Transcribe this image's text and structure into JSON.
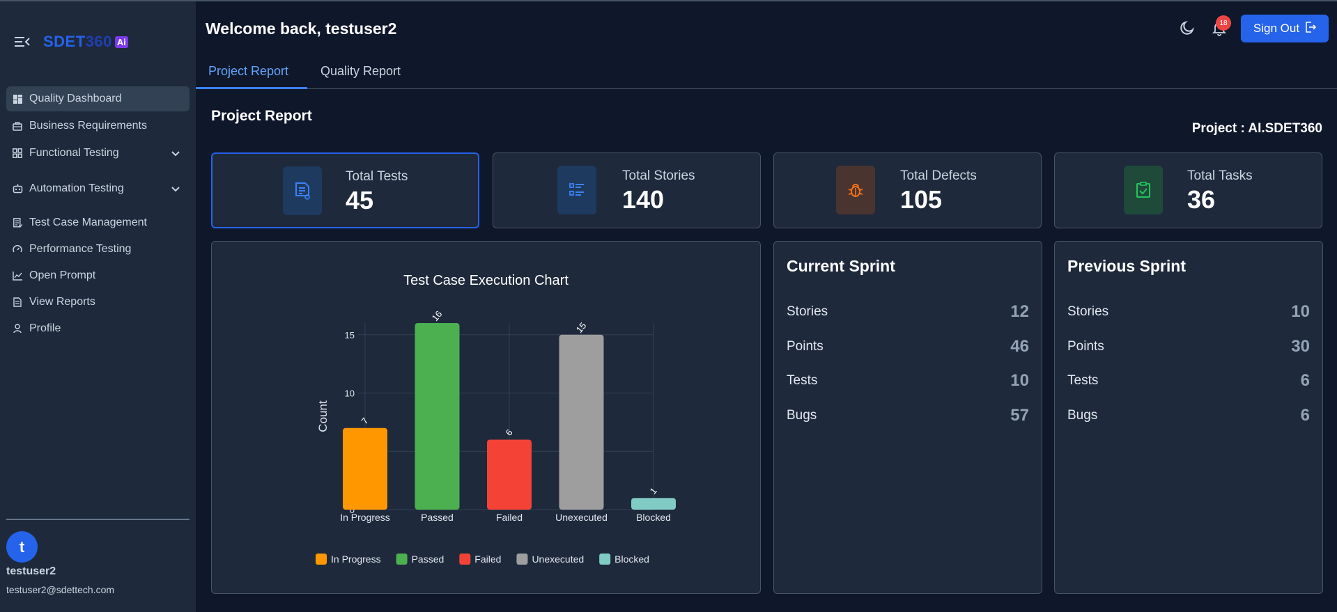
{
  "sidebar": {
    "logo_main": "SDET",
    "logo_num": "360",
    "logo_badge": "Ai",
    "items": [
      {
        "label": "Quality Dashboard",
        "icon": "dashboard-icon",
        "active": true
      },
      {
        "label": "Business Requirements",
        "icon": "briefcase-icon"
      },
      {
        "label": "Functional Testing",
        "icon": "grid-icon",
        "expandable": true
      },
      {
        "label": "Automation Testing",
        "icon": "robot-icon",
        "expandable": true
      },
      {
        "label": "Test Case Management",
        "icon": "checklist-icon"
      },
      {
        "label": "Performance Testing",
        "icon": "gauge-icon"
      },
      {
        "label": "Open Prompt",
        "icon": "chart-line-icon"
      },
      {
        "label": "View Reports",
        "icon": "document-icon"
      },
      {
        "label": "Profile",
        "icon": "user-icon"
      }
    ],
    "user": {
      "initial": "t",
      "name": "testuser2",
      "email": "testuser2@sdettech.com"
    }
  },
  "header": {
    "welcome": "Welcome back, testuser2",
    "notification_count": "18",
    "signout_label": "Sign Out"
  },
  "tabs": [
    {
      "label": "Project Report",
      "active": true
    },
    {
      "label": "Quality Report",
      "active": false
    }
  ],
  "main": {
    "section_title": "Project Report",
    "project_label": "Project : AI.SDET360",
    "stats": [
      {
        "label": "Total Tests",
        "value": "45",
        "icon": "test-document-icon",
        "color": "#3b82f6"
      },
      {
        "label": "Total Stories",
        "value": "140",
        "icon": "list-icon",
        "color": "#3b82f6"
      },
      {
        "label": "Total Defects",
        "value": "105",
        "icon": "bug-icon",
        "color": "#f97316"
      },
      {
        "label": "Total Tasks",
        "value": "36",
        "icon": "task-check-icon",
        "color": "#22c55e"
      }
    ],
    "current_sprint": {
      "title": "Current Sprint",
      "rows": [
        {
          "label": "Stories",
          "value": "12"
        },
        {
          "label": "Points",
          "value": "46"
        },
        {
          "label": "Tests",
          "value": "10"
        },
        {
          "label": "Bugs",
          "value": "57"
        }
      ]
    },
    "previous_sprint": {
      "title": "Previous Sprint",
      "rows": [
        {
          "label": "Stories",
          "value": "10"
        },
        {
          "label": "Points",
          "value": "30"
        },
        {
          "label": "Tests",
          "value": "6"
        },
        {
          "label": "Bugs",
          "value": "6"
        }
      ]
    }
  },
  "chart_data": {
    "type": "bar",
    "title": "Test Case Execution Chart",
    "xlabel": "",
    "ylabel": "Count",
    "categories": [
      "In Progress",
      "Passed",
      "Failed",
      "Unexecuted",
      "Blocked"
    ],
    "values": [
      7,
      16,
      6,
      15,
      1
    ],
    "colors": [
      "#ff9800",
      "#4caf50",
      "#f44336",
      "#9e9e9e",
      "#80cbc4"
    ],
    "ylim": [
      0,
      16
    ],
    "yticks": [
      0,
      5,
      10,
      15
    ],
    "grid": true,
    "legend": "bottom"
  }
}
